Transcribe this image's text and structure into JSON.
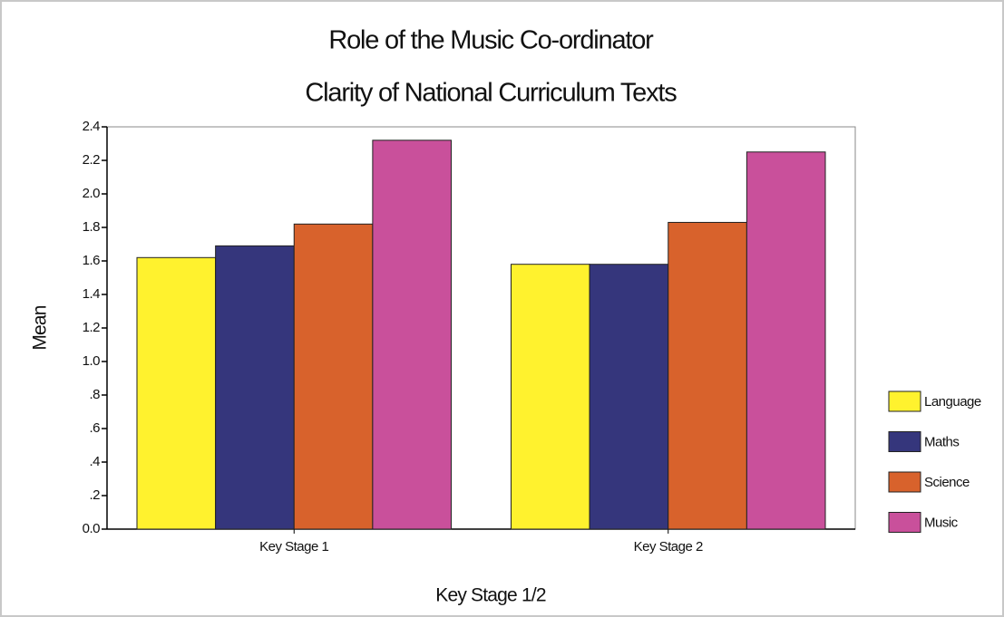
{
  "chart_data": {
    "type": "bar",
    "title": [
      "Role of the Music Co-ordinator",
      "Clarity of National Curriculum Texts"
    ],
    "x_label": "Key Stage 1/2",
    "y_label": "Mean",
    "categories": [
      "Key Stage 1",
      "Key Stage 2"
    ],
    "series": [
      {
        "name": "Language",
        "color": "#fff22e",
        "values": [
          1.62,
          1.58
        ]
      },
      {
        "name": "Maths",
        "color": "#35367c",
        "values": [
          1.69,
          1.58
        ]
      },
      {
        "name": "Science",
        "color": "#d8622c",
        "values": [
          1.82,
          1.83
        ]
      },
      {
        "name": "Music",
        "color": "#c9509b",
        "values": [
          2.32,
          2.25
        ]
      }
    ],
    "ylim": [
      0,
      2.4
    ],
    "yticks": [
      {
        "value": 0,
        "label": "0.0"
      },
      {
        "value": 0.2,
        "label": ".2"
      },
      {
        "value": 0.4,
        "label": ".4"
      },
      {
        "value": 0.6,
        "label": ".6"
      },
      {
        "value": 0.8,
        "label": ".8"
      },
      {
        "value": 1.0,
        "label": "1.0"
      },
      1.2,
      1.4,
      1.6,
      1.8,
      {
        "value": 2.0,
        "label": "2.0"
      },
      2.2,
      2.4
    ],
    "legend": "right"
  }
}
